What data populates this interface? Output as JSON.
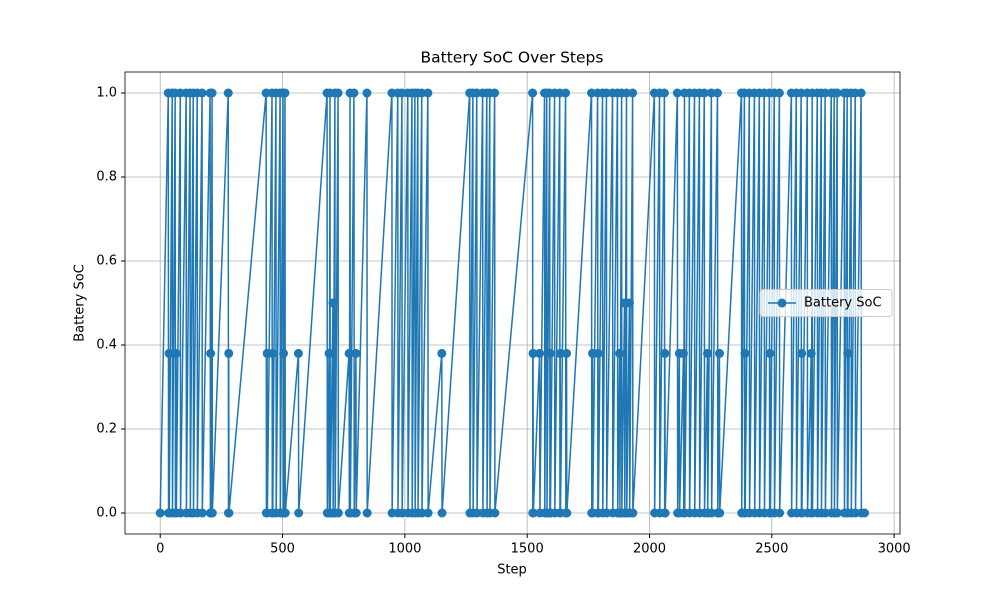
{
  "chart_data": {
    "type": "line",
    "title": "Battery SoC Over Steps",
    "xlabel": "Step",
    "ylabel": "Battery SoC",
    "x": [
      0,
      33,
      34,
      36,
      37,
      49,
      50,
      61,
      62,
      65,
      66,
      82,
      83,
      106,
      107,
      122,
      123,
      135,
      136,
      151,
      152,
      171,
      172,
      204,
      205,
      206,
      207,
      212,
      213,
      278,
      279,
      280,
      281,
      433,
      434,
      437,
      438,
      457,
      458,
      459,
      460,
      473,
      474,
      490,
      491,
      502,
      503,
      504,
      505,
      510,
      511,
      565,
      566,
      682,
      683,
      690,
      691,
      694,
      695,
      706,
      707,
      714,
      715,
      727,
      728,
      772,
      773,
      776,
      777,
      792,
      793,
      800,
      801,
      845,
      846,
      947,
      948,
      971,
      972,
      988,
      989,
      1012,
      1013,
      1029,
      1030,
      1041,
      1042,
      1053,
      1054,
      1069,
      1070,
      1094,
      1095,
      1151,
      1152,
      1265,
      1266,
      1278,
      1279,
      1294,
      1295,
      1318,
      1319,
      1335,
      1336,
      1347,
      1348,
      1367,
      1368,
      1522,
      1523,
      1524,
      1525,
      1551,
      1552,
      1571,
      1572,
      1580,
      1581,
      1592,
      1593,
      1594,
      1595,
      1612,
      1613,
      1633,
      1634,
      1635,
      1636,
      1657,
      1658,
      1661,
      1662,
      1763,
      1764,
      1767,
      1768,
      1788,
      1789,
      1790,
      1791,
      1808,
      1809,
      1824,
      1825,
      1849,
      1850,
      1869,
      1870,
      1878,
      1879,
      1886,
      1887,
      1898,
      1899,
      1906,
      1907,
      1918,
      1919,
      1931,
      1932,
      2020,
      2021,
      2041,
      2042,
      2061,
      2062,
      2063,
      2064,
      2114,
      2115,
      2122,
      2123,
      2139,
      2140,
      2143,
      2144,
      2163,
      2164,
      2184,
      2185,
      2204,
      2205,
      2224,
      2225,
      2237,
      2238,
      2253,
      2254,
      2278,
      2279,
      2286,
      2287,
      2376,
      2377,
      2388,
      2389,
      2390,
      2391,
      2408,
      2409,
      2429,
      2430,
      2449,
      2450,
      2469,
      2470,
      2490,
      2491,
      2492,
      2493,
      2510,
      2511,
      2531,
      2532,
      2580,
      2581,
      2600,
      2601,
      2620,
      2621,
      2622,
      2623,
      2645,
      2646,
      2661,
      2662,
      2665,
      2666,
      2686,
      2687,
      2702,
      2703,
      2718,
      2719,
      2743,
      2744,
      2755,
      2756,
      2767,
      2768,
      2796,
      2797,
      2808,
      2809,
      2810,
      2811,
      2824,
      2825,
      2841,
      2842,
      2865,
      2866,
      2879
    ],
    "series": [
      {
        "name": "Battery SoC",
        "color": "#1f77b4",
        "values": [
          0,
          1,
          0,
          0.38,
          0,
          1,
          0,
          1,
          0,
          0.38,
          0,
          1,
          0,
          1,
          0,
          1,
          0,
          1,
          0,
          1,
          0,
          1,
          0,
          1,
          0,
          0.38,
          0,
          1,
          0,
          1,
          0,
          0.38,
          0,
          1,
          0,
          0.38,
          0,
          1,
          0,
          0.38,
          0,
          1,
          0,
          1,
          0,
          1,
          0,
          0.38,
          0,
          1,
          0,
          0.38,
          0,
          1,
          0,
          0.38,
          0,
          1,
          0,
          0.5,
          0,
          1,
          0,
          1,
          0,
          0.38,
          0,
          1,
          0,
          1,
          0,
          0.38,
          0,
          1,
          0,
          1,
          0,
          1,
          0,
          1,
          0,
          1,
          0,
          1,
          0,
          1,
          0,
          1,
          0,
          1,
          0,
          1,
          0,
          0.38,
          0,
          1,
          0,
          1,
          0,
          1,
          0,
          1,
          0,
          1,
          0,
          1,
          0,
          1,
          0,
          1,
          0,
          0.38,
          0,
          0.38,
          0,
          1,
          0,
          1,
          0,
          1,
          0,
          0.38,
          0,
          1,
          0,
          1,
          0,
          0.38,
          0,
          1,
          0,
          0.38,
          0,
          1,
          0,
          0.38,
          0,
          1,
          0,
          0.38,
          0,
          1,
          0,
          1,
          0,
          1,
          0,
          1,
          0,
          0.38,
          0,
          1,
          0,
          0.5,
          0,
          1,
          0,
          0.5,
          0,
          1,
          0,
          1,
          0,
          1,
          0,
          1,
          0,
          0.38,
          0,
          1,
          0,
          0.38,
          0,
          0.38,
          0,
          1,
          0,
          1,
          0,
          1,
          0,
          1,
          0,
          1,
          0,
          0.38,
          0,
          1,
          0,
          1,
          0,
          0.38,
          0,
          1,
          0,
          1,
          0,
          0.38,
          0,
          1,
          0,
          1,
          0,
          1,
          0,
          1,
          0,
          1,
          0,
          0.38,
          0,
          1,
          0,
          1,
          0,
          1,
          0,
          1,
          0,
          1,
          0,
          0.38,
          0,
          1,
          0,
          0.38,
          0,
          1,
          0,
          1,
          0,
          1,
          0,
          1,
          0,
          1,
          0,
          1,
          0,
          1,
          0,
          1,
          0,
          1,
          0,
          0.38,
          0,
          1,
          0,
          1,
          0,
          1,
          0,
          0
        ]
      }
    ],
    "xlim": [
      -144,
      3024
    ],
    "ylim": [
      -0.05,
      1.05
    ],
    "xticks": [
      0,
      500,
      1000,
      1500,
      2000,
      2500,
      3000
    ],
    "yticks": [
      {
        "value": 0,
        "label": "0.0"
      },
      0.2,
      0.4,
      0.6,
      0.8,
      {
        "value": 1,
        "label": "1.0"
      }
    ],
    "grid": true,
    "legend": "center right"
  }
}
